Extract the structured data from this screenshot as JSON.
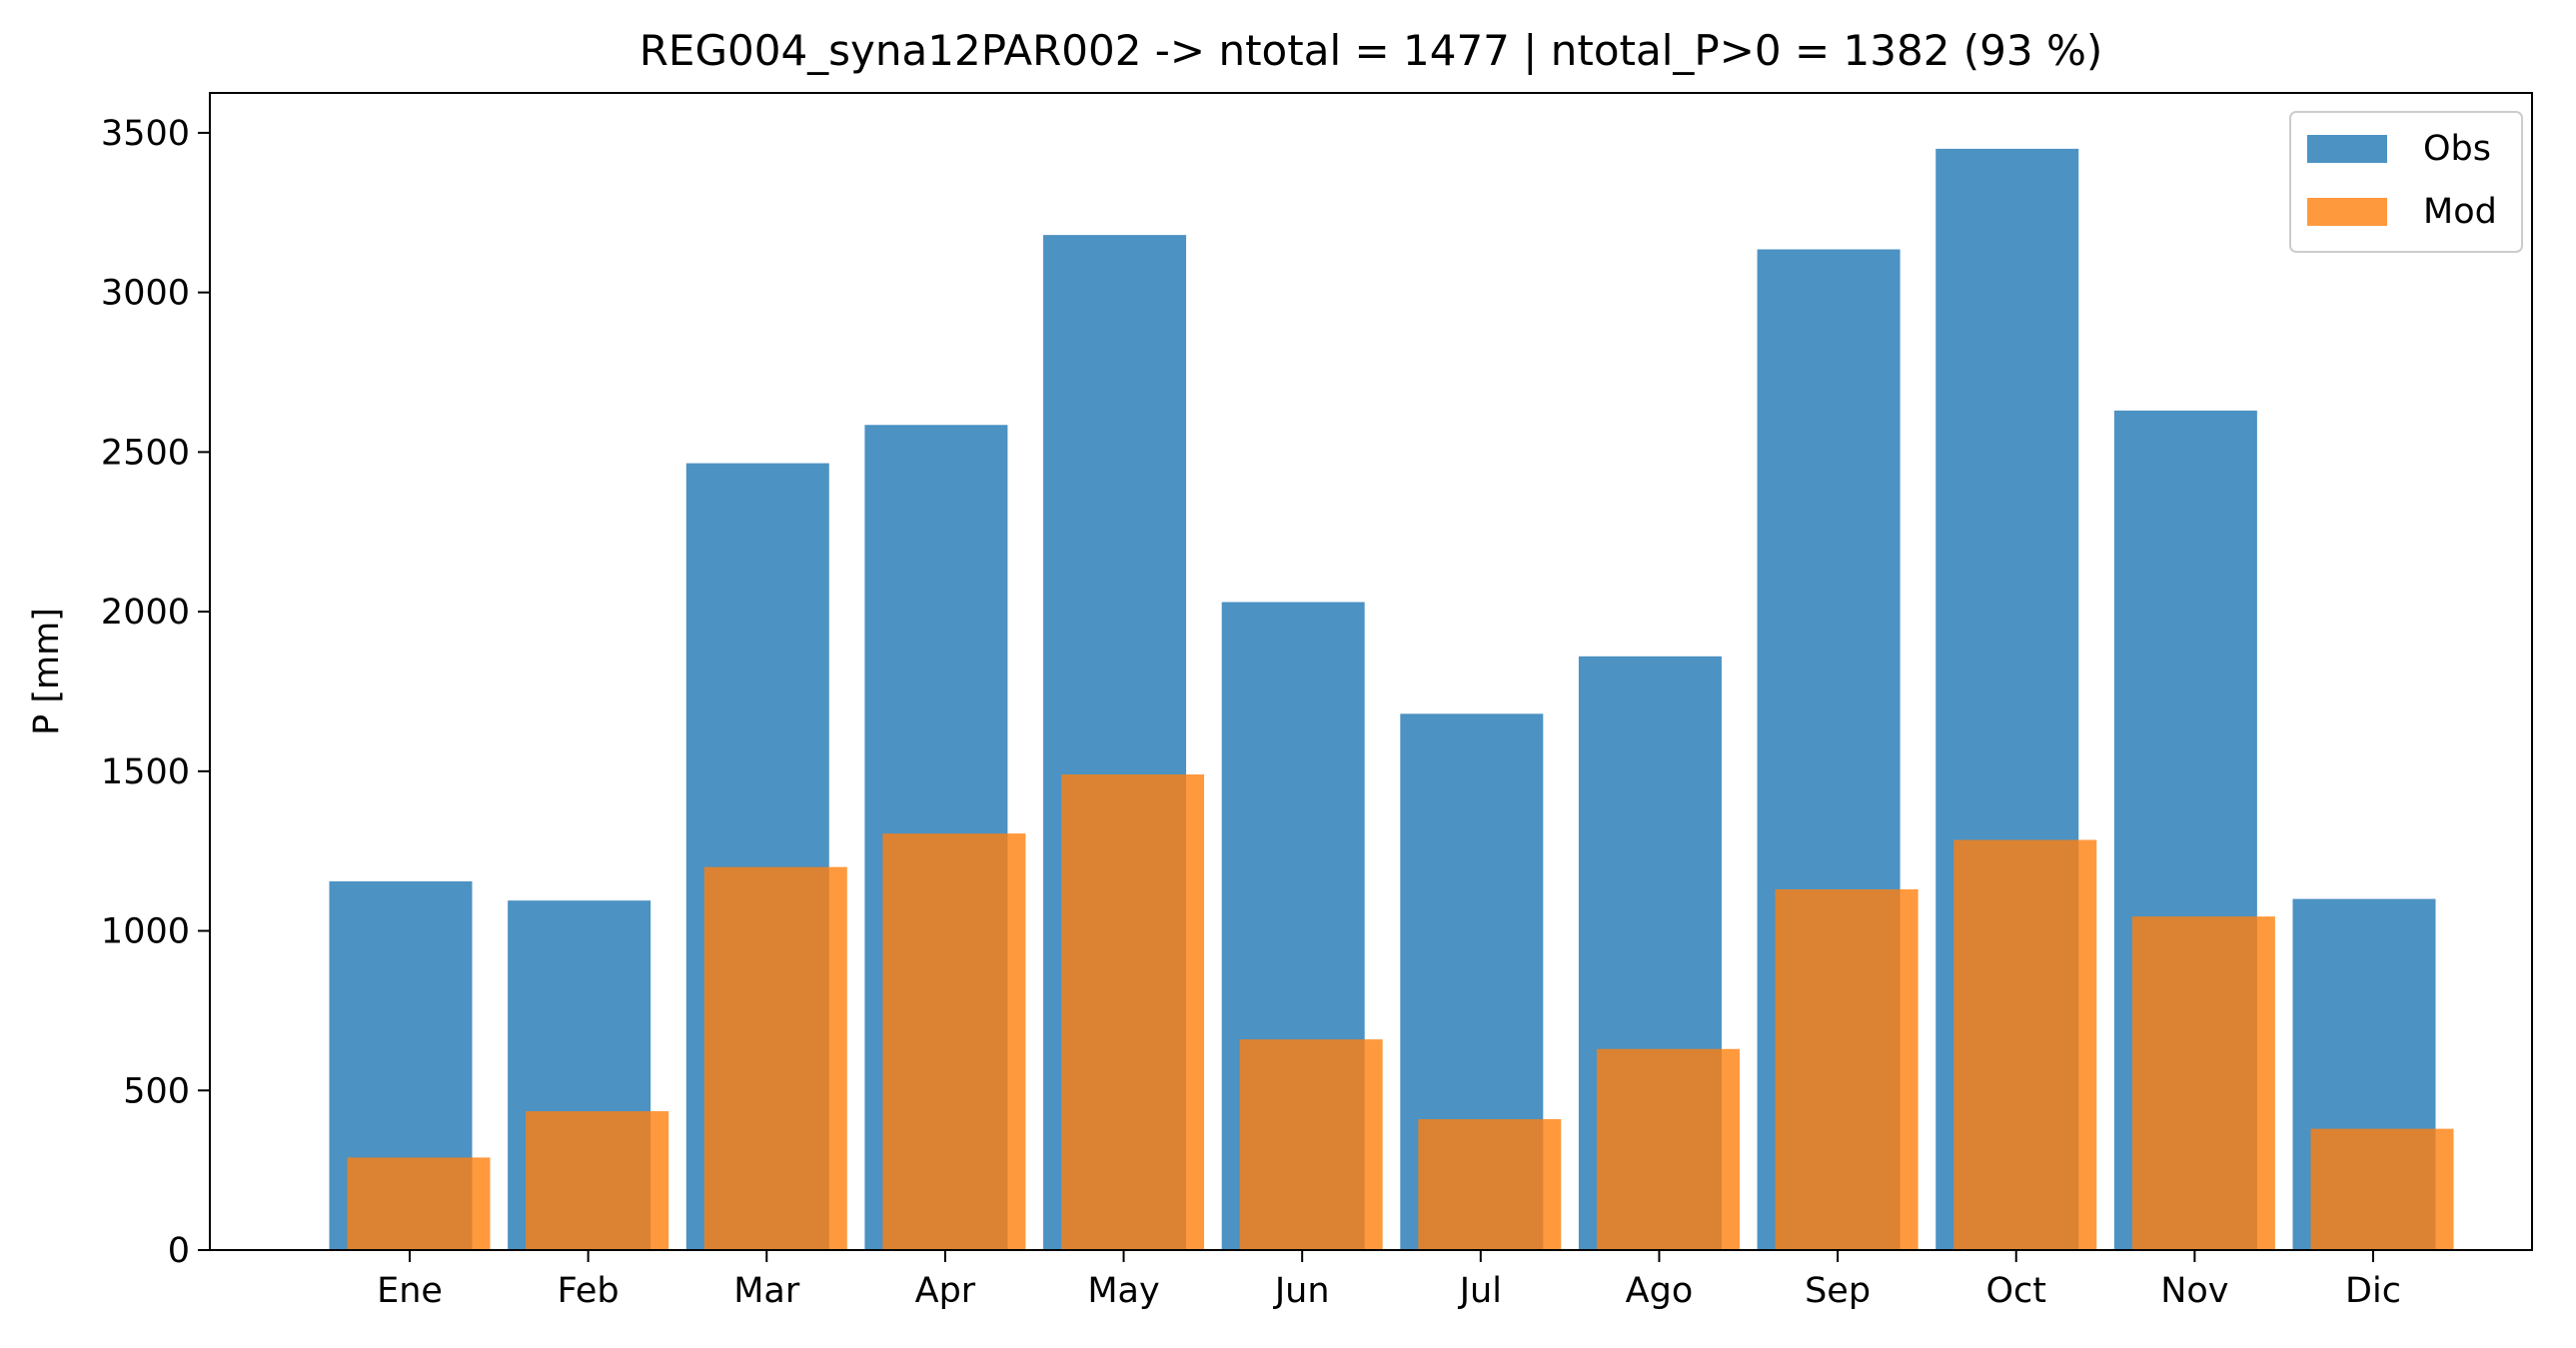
{
  "chart_data": {
    "type": "bar",
    "title": "REG004_syna12PAR002 -> ntotal = 1477 | ntotal_P>0 = 1382 (93 %)",
    "xlabel": "",
    "ylabel": "P [mm]",
    "categories": [
      "Ene",
      "Feb",
      "Mar",
      "Apr",
      "May",
      "Jun",
      "Jul",
      "Ago",
      "Sep",
      "Oct",
      "Nov",
      "Dic"
    ],
    "series": [
      {
        "name": "Obs",
        "color": "#1f77b4",
        "opacity": 0.8,
        "values": [
          1155,
          1095,
          2465,
          2585,
          3180,
          2030,
          1680,
          1860,
          3135,
          3450,
          2630,
          1100
        ]
      },
      {
        "name": "Mod",
        "color": "#ff7f0e",
        "opacity": 0.8,
        "values": [
          290,
          435,
          1200,
          1305,
          1490,
          660,
          410,
          630,
          1130,
          1285,
          1045,
          380
        ]
      }
    ],
    "yticks": [
      0,
      500,
      1000,
      1500,
      2000,
      2500,
      3000,
      3500
    ],
    "ylim": [
      0,
      3625
    ],
    "grid": false,
    "legend_position": "top-right"
  }
}
